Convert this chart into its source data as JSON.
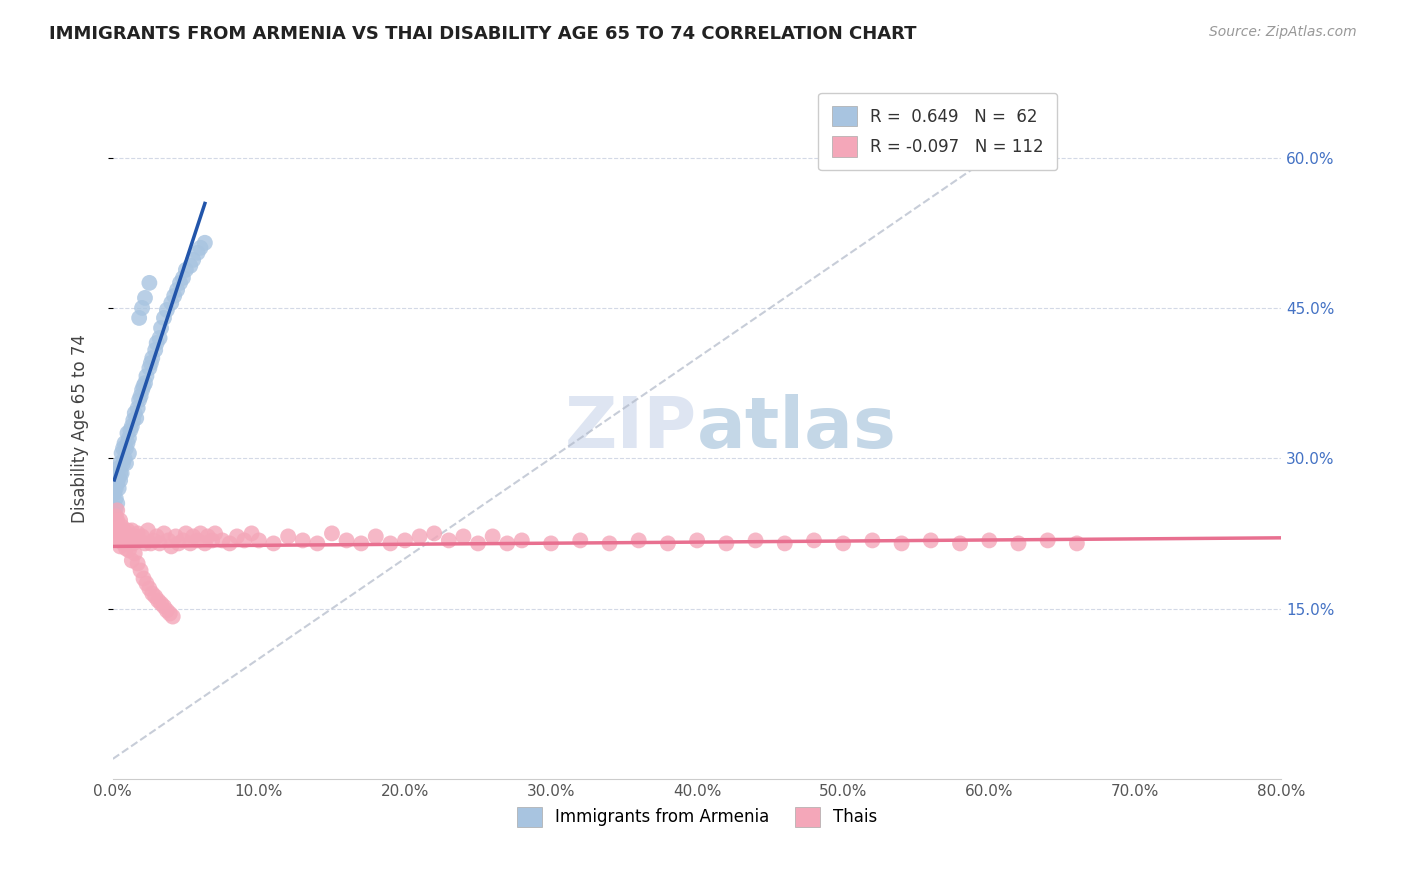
{
  "title": "IMMIGRANTS FROM ARMENIA VS THAI DISABILITY AGE 65 TO 74 CORRELATION CHART",
  "source": "Source: ZipAtlas.com",
  "ylabel": "Disability Age 65 to 74",
  "legend_label1": "Immigrants from Armenia",
  "legend_label2": "Thais",
  "R1": 0.649,
  "N1": 62,
  "R2": -0.097,
  "N2": 112,
  "xlim": [
    0.0,
    0.8
  ],
  "ylim": [
    -0.02,
    0.68
  ],
  "yticks": [
    0.15,
    0.3,
    0.45,
    0.6
  ],
  "ytick_labels": [
    "15.0%",
    "30.0%",
    "45.0%",
    "60.0%"
  ],
  "color_armenia": "#a8c4e0",
  "color_thai": "#f4a7b9",
  "color_line_armenia": "#2255aa",
  "color_line_thai": "#e87090",
  "color_diag": "#b0b8c8",
  "watermark_zip_color": "#c8d4ea",
  "watermark_atlas_color": "#8ab0d0",
  "armenia_x": [
    0.001,
    0.001,
    0.002,
    0.002,
    0.002,
    0.003,
    0.003,
    0.003,
    0.004,
    0.004,
    0.004,
    0.005,
    0.005,
    0.005,
    0.006,
    0.006,
    0.007,
    0.007,
    0.008,
    0.008,
    0.009,
    0.009,
    0.01,
    0.01,
    0.011,
    0.011,
    0.012,
    0.013,
    0.014,
    0.015,
    0.016,
    0.017,
    0.018,
    0.019,
    0.02,
    0.021,
    0.022,
    0.023,
    0.025,
    0.026,
    0.027,
    0.029,
    0.03,
    0.032,
    0.033,
    0.035,
    0.037,
    0.04,
    0.042,
    0.044,
    0.046,
    0.048,
    0.05,
    0.053,
    0.055,
    0.058,
    0.06,
    0.063,
    0.018,
    0.02,
    0.022,
    0.025
  ],
  "armenia_y": [
    0.245,
    0.265,
    0.27,
    0.26,
    0.25,
    0.255,
    0.275,
    0.285,
    0.27,
    0.28,
    0.29,
    0.278,
    0.285,
    0.295,
    0.285,
    0.305,
    0.295,
    0.31,
    0.3,
    0.315,
    0.295,
    0.31,
    0.315,
    0.325,
    0.305,
    0.32,
    0.328,
    0.332,
    0.338,
    0.345,
    0.34,
    0.35,
    0.358,
    0.362,
    0.368,
    0.372,
    0.375,
    0.382,
    0.39,
    0.395,
    0.4,
    0.408,
    0.415,
    0.42,
    0.43,
    0.44,
    0.448,
    0.455,
    0.462,
    0.468,
    0.475,
    0.48,
    0.488,
    0.492,
    0.498,
    0.505,
    0.51,
    0.515,
    0.44,
    0.45,
    0.46,
    0.475
  ],
  "thai_x": [
    0.001,
    0.002,
    0.002,
    0.003,
    0.003,
    0.004,
    0.004,
    0.005,
    0.005,
    0.006,
    0.006,
    0.007,
    0.007,
    0.008,
    0.008,
    0.009,
    0.009,
    0.01,
    0.01,
    0.011,
    0.012,
    0.013,
    0.014,
    0.015,
    0.016,
    0.017,
    0.018,
    0.02,
    0.022,
    0.024,
    0.026,
    0.028,
    0.03,
    0.032,
    0.035,
    0.038,
    0.04,
    0.043,
    0.045,
    0.048,
    0.05,
    0.053,
    0.055,
    0.058,
    0.06,
    0.063,
    0.065,
    0.068,
    0.07,
    0.075,
    0.08,
    0.085,
    0.09,
    0.095,
    0.1,
    0.11,
    0.12,
    0.13,
    0.14,
    0.15,
    0.16,
    0.17,
    0.18,
    0.19,
    0.2,
    0.21,
    0.22,
    0.23,
    0.24,
    0.25,
    0.26,
    0.27,
    0.28,
    0.3,
    0.32,
    0.34,
    0.36,
    0.38,
    0.4,
    0.42,
    0.44,
    0.46,
    0.48,
    0.5,
    0.52,
    0.54,
    0.56,
    0.58,
    0.6,
    0.62,
    0.64,
    0.66,
    0.003,
    0.005,
    0.007,
    0.009,
    0.011,
    0.013,
    0.015,
    0.017,
    0.019,
    0.021,
    0.023,
    0.025,
    0.027,
    0.029,
    0.031,
    0.033,
    0.035,
    0.037,
    0.039,
    0.041
  ],
  "thai_y": [
    0.235,
    0.242,
    0.228,
    0.238,
    0.222,
    0.23,
    0.218,
    0.225,
    0.212,
    0.232,
    0.22,
    0.228,
    0.215,
    0.222,
    0.218,
    0.225,
    0.21,
    0.228,
    0.215,
    0.222,
    0.218,
    0.228,
    0.215,
    0.222,
    0.218,
    0.225,
    0.218,
    0.222,
    0.215,
    0.228,
    0.215,
    0.218,
    0.222,
    0.215,
    0.225,
    0.218,
    0.212,
    0.222,
    0.215,
    0.218,
    0.225,
    0.215,
    0.222,
    0.218,
    0.225,
    0.215,
    0.222,
    0.218,
    0.225,
    0.218,
    0.215,
    0.222,
    0.218,
    0.225,
    0.218,
    0.215,
    0.222,
    0.218,
    0.215,
    0.225,
    0.218,
    0.215,
    0.222,
    0.215,
    0.218,
    0.222,
    0.225,
    0.218,
    0.222,
    0.215,
    0.222,
    0.215,
    0.218,
    0.215,
    0.218,
    0.215,
    0.218,
    0.215,
    0.218,
    0.215,
    0.218,
    0.215,
    0.218,
    0.215,
    0.218,
    0.215,
    0.218,
    0.215,
    0.218,
    0.215,
    0.218,
    0.215,
    0.248,
    0.238,
    0.228,
    0.218,
    0.208,
    0.198,
    0.205,
    0.195,
    0.188,
    0.18,
    0.175,
    0.17,
    0.165,
    0.162,
    0.158,
    0.155,
    0.152,
    0.148,
    0.145,
    0.142
  ]
}
